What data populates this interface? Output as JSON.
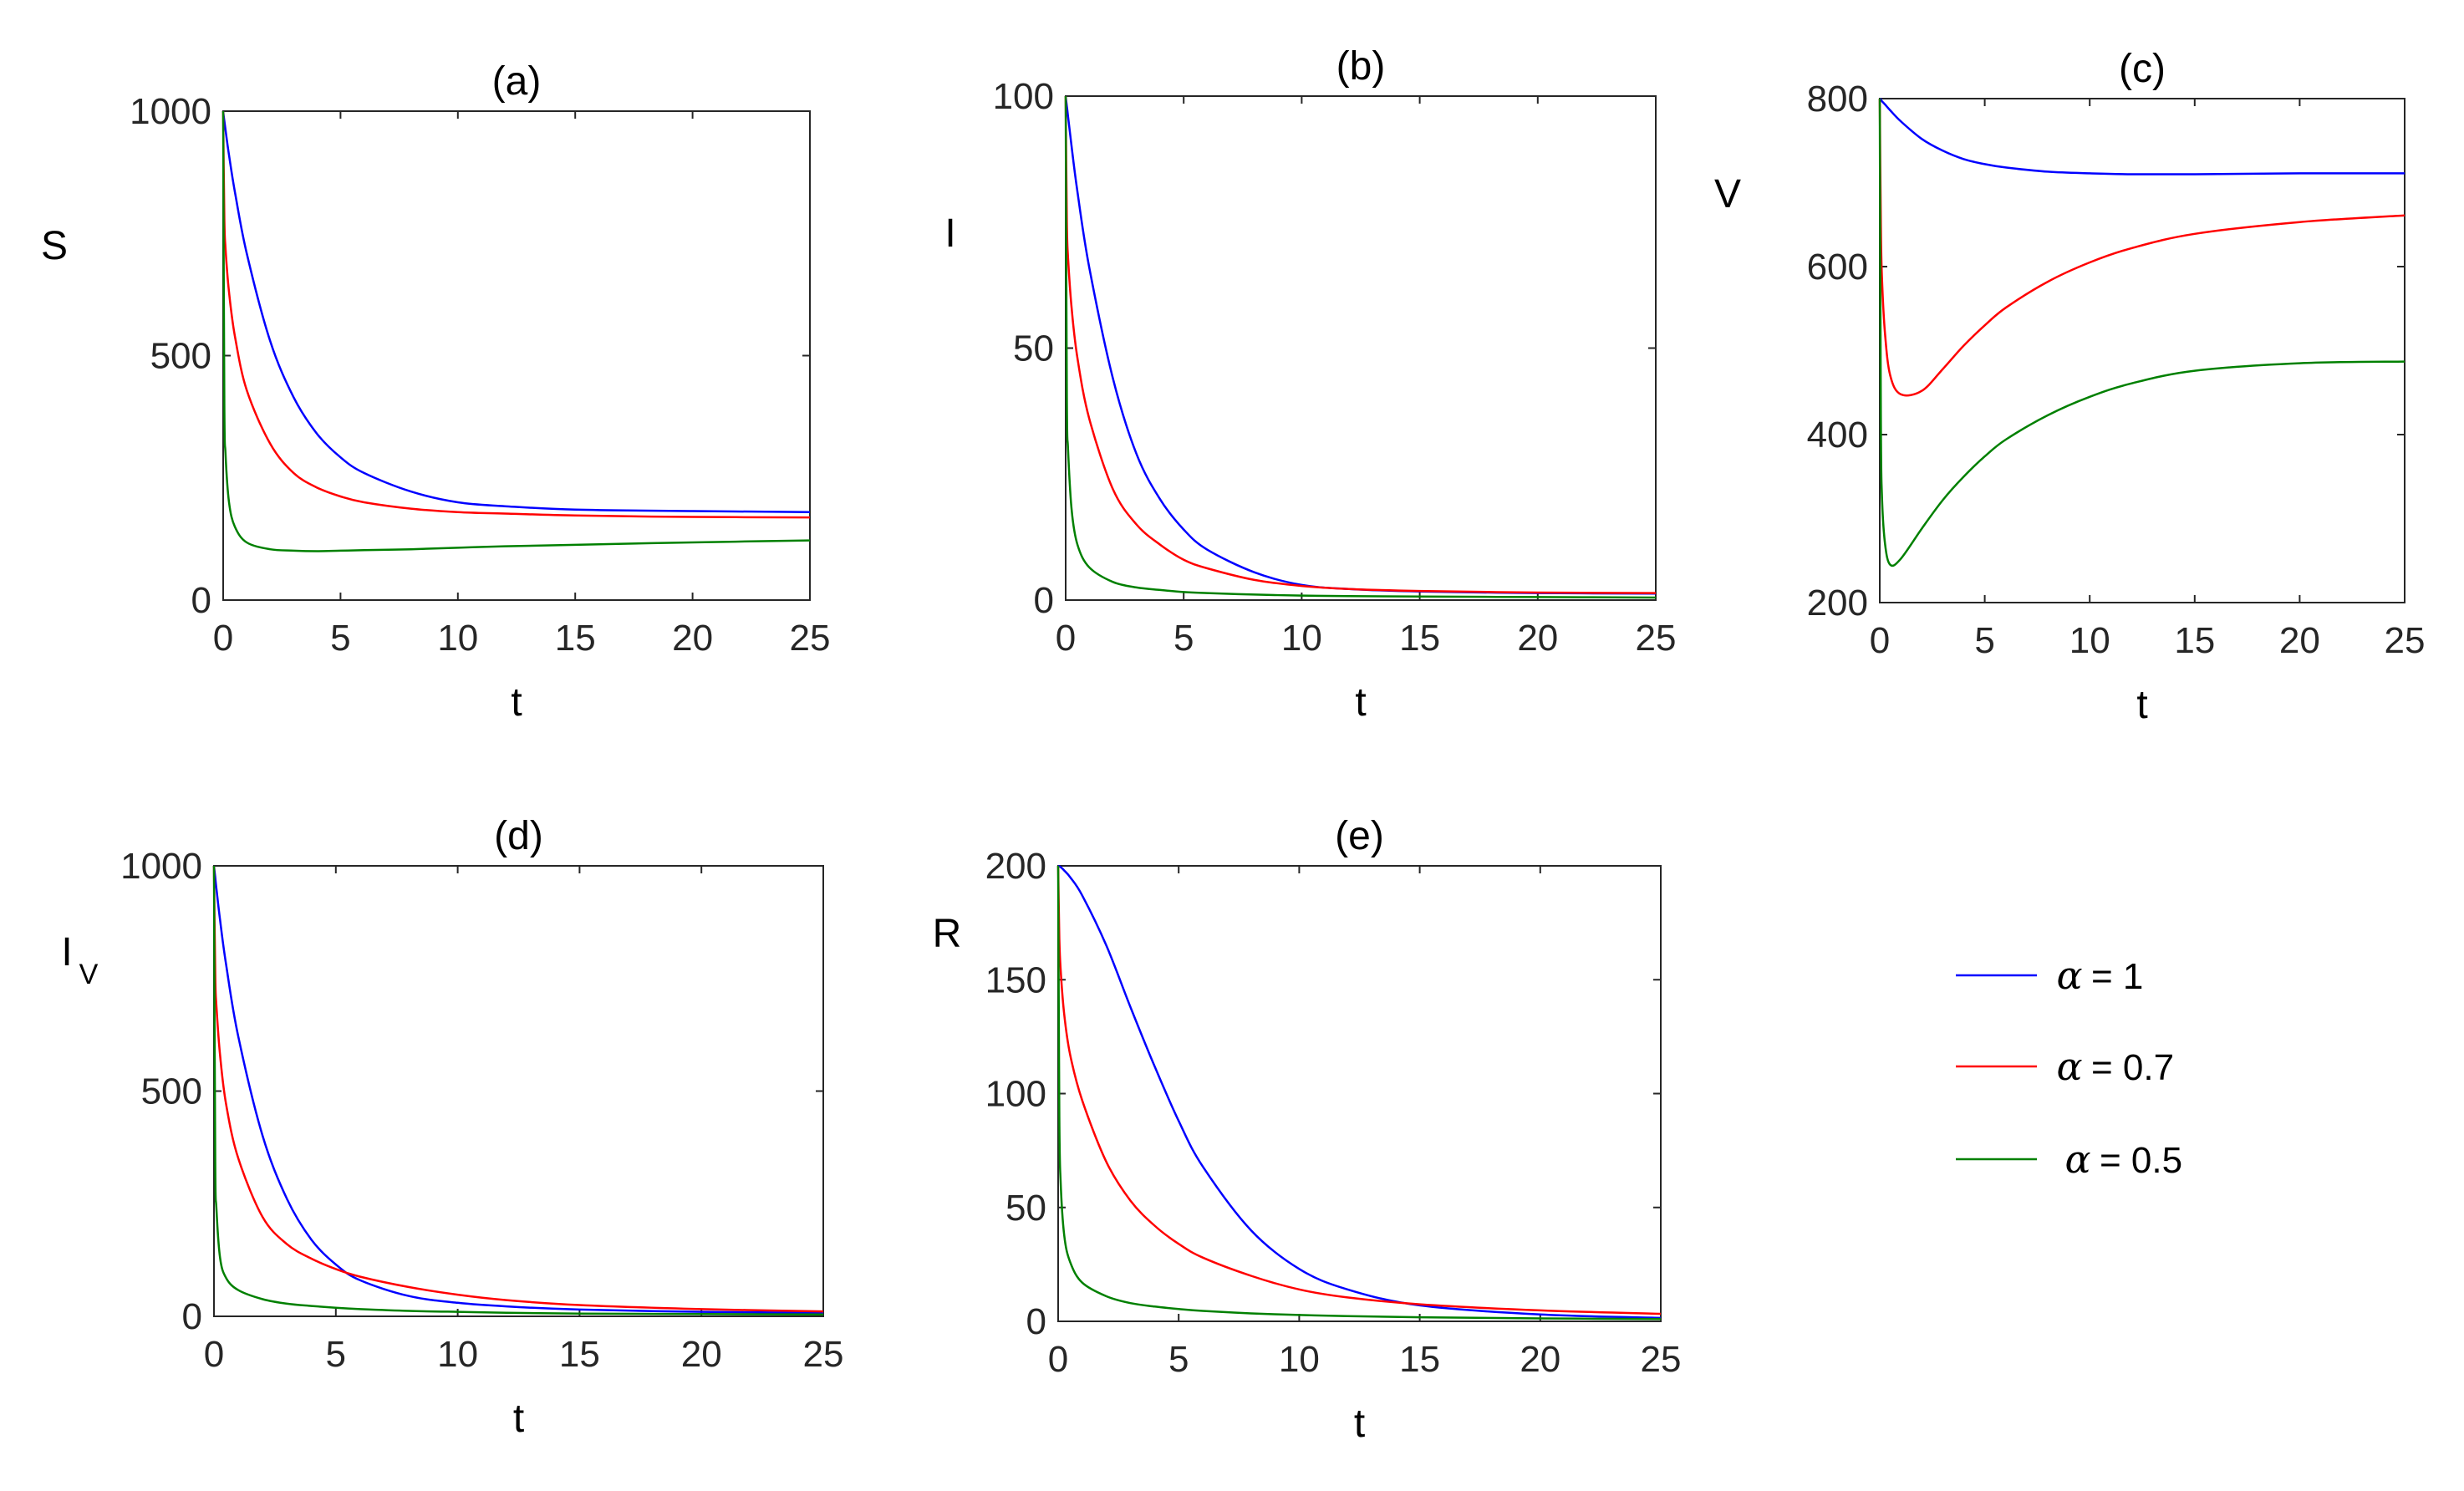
{
  "colors": {
    "axis": "#262626",
    "text": "#000000"
  },
  "series_styles": [
    {
      "name": "alpha = 1",
      "color": "#0000ff"
    },
    {
      "name": "alpha = 0.7",
      "color": "#ff0000"
    },
    {
      "name": "alpha = 0.5",
      "color": "#008000"
    }
  ],
  "legend": {
    "items": [
      {
        "symbol": "α",
        "text": "= 1",
        "color": "#0000ff"
      },
      {
        "symbol": "α",
        "text": "= 0.7",
        "color": "#ff0000"
      },
      {
        "symbol": "α",
        "text": "= 0.5",
        "color": "#008000"
      }
    ]
  },
  "chart_data": [
    {
      "type": "line",
      "title": "(a)",
      "xlabel": "t",
      "ylabel": "S",
      "ylabel_sub": "",
      "xlim": [
        0,
        25
      ],
      "ylim": [
        0,
        1000
      ],
      "xticks": [
        0,
        5,
        10,
        15,
        20,
        25
      ],
      "yticks": [
        0,
        500,
        1000
      ],
      "x": [
        0,
        0.05,
        0.1,
        0.25,
        0.5,
        1,
        2,
        3,
        4,
        5,
        6,
        8,
        10,
        12,
        15,
        20,
        25
      ],
      "series": [
        {
          "name": "alpha = 1",
          "values": [
            1000,
            980,
            962,
            910,
            835,
            710,
            530,
            415,
            340,
            292,
            260,
            222,
            200,
            192,
            185,
            182,
            180
          ]
        },
        {
          "name": "alpha = 0.7",
          "values": [
            1000,
            780,
            720,
            630,
            540,
            430,
            320,
            260,
            230,
            212,
            200,
            187,
            180,
            177,
            173,
            170,
            169
          ]
        },
        {
          "name": "alpha = 0.5",
          "values": [
            1000,
            400,
            300,
            200,
            150,
            118,
            104,
            101,
            100,
            101,
            102,
            104,
            107,
            110,
            113,
            118,
            122
          ]
        }
      ]
    },
    {
      "type": "line",
      "title": "(b)",
      "xlabel": "t",
      "ylabel": "I",
      "ylabel_sub": "",
      "xlim": [
        0,
        25
      ],
      "ylim": [
        0,
        100
      ],
      "xticks": [
        0,
        5,
        10,
        15,
        20,
        25
      ],
      "yticks": [
        0,
        50,
        100
      ],
      "x": [
        0,
        0.05,
        0.1,
        0.25,
        0.5,
        1,
        2,
        3,
        4,
        5,
        6,
        8,
        10,
        12,
        15,
        20,
        25
      ],
      "series": [
        {
          "name": "alpha = 1",
          "values": [
            100,
            98,
            96,
            90,
            81,
            66,
            44,
            29,
            20,
            14,
            10,
            5.5,
            3,
            2.2,
            1.7,
            1.4,
            1.3
          ]
        },
        {
          "name": "alpha = 0.7",
          "values": [
            100,
            75,
            68,
            58,
            48,
            36,
            22,
            15,
            11,
            8,
            6.3,
            4,
            2.8,
            2.2,
            1.8,
            1.5,
            1.4
          ]
        },
        {
          "name": "alpha = 0.5",
          "values": [
            100,
            40,
            30,
            18,
            11,
            6.5,
            3.6,
            2.5,
            2,
            1.6,
            1.4,
            1.1,
            0.9,
            0.8,
            0.7,
            0.6,
            0.5
          ]
        }
      ]
    },
    {
      "type": "line",
      "title": "(c)",
      "xlabel": "t",
      "ylabel": "V",
      "ylabel_sub": "",
      "xlim": [
        0,
        25
      ],
      "ylim": [
        200,
        800
      ],
      "xticks": [
        0,
        5,
        10,
        15,
        20,
        25
      ],
      "yticks": [
        200,
        400,
        600,
        800
      ],
      "x": [
        0,
        0.05,
        0.1,
        0.25,
        0.5,
        1,
        2,
        3,
        4,
        5,
        6,
        8,
        10,
        12,
        15,
        20,
        25
      ],
      "series": [
        {
          "name": "alpha = 1",
          "values": [
            800,
            799,
            797,
            793,
            786,
            773,
            752,
            738,
            728,
            722,
            718,
            713,
            711,
            710,
            710,
            711,
            711
          ]
        },
        {
          "name": "alpha = 0.7",
          "values": [
            800,
            650,
            590,
            520,
            470,
            448,
            452,
            478,
            506,
            530,
            551,
            582,
            605,
            622,
            639,
            653,
            661
          ]
        },
        {
          "name": "alpha = 0.5",
          "values": [
            800,
            420,
            330,
            270,
            245,
            252,
            288,
            322,
            350,
            374,
            394,
            423,
            445,
            461,
            476,
            485,
            487
          ]
        }
      ]
    },
    {
      "type": "line",
      "title": "(d)",
      "xlabel": "t",
      "ylabel": "I",
      "ylabel_sub": "V",
      "xlim": [
        0,
        25
      ],
      "ylim": [
        0,
        1000
      ],
      "xticks": [
        0,
        5,
        10,
        15,
        20,
        25
      ],
      "yticks": [
        0,
        500,
        1000
      ],
      "x": [
        0,
        0.05,
        0.1,
        0.25,
        0.5,
        1,
        2,
        3,
        4,
        5,
        6,
        8,
        10,
        12,
        15,
        20,
        25
      ],
      "series": [
        {
          "name": "alpha = 1",
          "values": [
            1000,
            975,
            950,
            880,
            780,
            620,
            400,
            260,
            170,
            115,
            80,
            45,
            30,
            22,
            15,
            10,
            8
          ]
        },
        {
          "name": "alpha = 0.7",
          "values": [
            1000,
            760,
            690,
            580,
            470,
            350,
            220,
            160,
            128,
            105,
            88,
            65,
            48,
            36,
            25,
            16,
            11
          ]
        },
        {
          "name": "alpha = 0.5",
          "values": [
            1000,
            350,
            240,
            130,
            85,
            58,
            38,
            28,
            23,
            19,
            16,
            12,
            10,
            8,
            6,
            5,
            4
          ]
        }
      ]
    },
    {
      "type": "line",
      "title": "(e)",
      "xlabel": "t",
      "ylabel": "R",
      "ylabel_sub": "",
      "xlim": [
        0,
        25
      ],
      "ylim": [
        0,
        200
      ],
      "xticks": [
        0,
        5,
        10,
        15,
        20,
        25
      ],
      "yticks": [
        0,
        50,
        100,
        150,
        200
      ],
      "x": [
        0,
        0.05,
        0.1,
        0.25,
        0.5,
        1,
        2,
        3,
        4,
        5,
        6,
        8,
        10,
        12,
        15,
        20,
        25
      ],
      "series": [
        {
          "name": "alpha = 1",
          "values": [
            200,
            199.8,
            199.5,
            198,
            195,
            187,
            165,
            138,
            112,
            88,
            68,
            40,
            23,
            14,
            7,
            3,
            1.5
          ]
        },
        {
          "name": "alpha = 0.7",
          "values": [
            200,
            168,
            155,
            135,
            117,
            97,
            70,
            53,
            42,
            34,
            28,
            20,
            14,
            10.5,
            7.5,
            4.8,
            3.3
          ]
        },
        {
          "name": "alpha = 0.5",
          "values": [
            200,
            90,
            62,
            38,
            26,
            17,
            11,
            8,
            6.5,
            5.4,
            4.6,
            3.5,
            2.8,
            2.3,
            1.8,
            1.3,
            1
          ]
        }
      ]
    }
  ]
}
